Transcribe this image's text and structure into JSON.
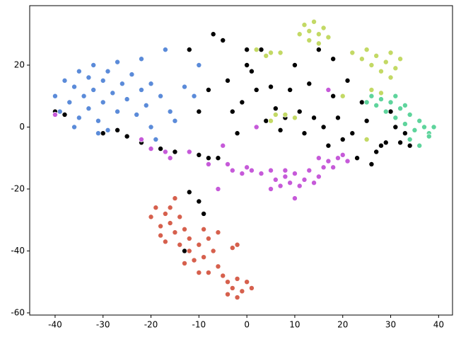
{
  "chart_data": {
    "type": "scatter",
    "xlim": [
      -45.3,
      42.9
    ],
    "ylim": [
      -60.7,
      39.2
    ],
    "xticks": [
      -40,
      -30,
      -20,
      -10,
      0,
      10,
      20,
      30,
      40
    ],
    "yticks": [
      -60,
      -40,
      -20,
      0,
      20
    ],
    "series": [
      {
        "color": "#5b8bd9",
        "x": [
          -40,
          -39,
          -38,
          -37,
          -36,
          -35,
          -35,
          -34,
          -33,
          -33,
          -32,
          -32,
          -31,
          -30,
          -30,
          -29,
          -29,
          -28,
          -27,
          -27,
          -26,
          -25,
          -25,
          -24,
          -23,
          -22,
          -22,
          -21,
          -20,
          -20,
          -19,
          -18,
          -17,
          -16,
          -15,
          -13,
          -10,
          -11,
          -36,
          -31
        ],
        "values": [
          10,
          5,
          15,
          8,
          13,
          18,
          3,
          10,
          16,
          6,
          20,
          12,
          2,
          15,
          8,
          18,
          -1,
          11,
          5,
          21,
          14,
          9,
          -3,
          17,
          4,
          12,
          22,
          7,
          0,
          14,
          -4,
          10,
          25,
          5,
          2,
          13,
          20,
          10,
          0,
          -2
        ]
      },
      {
        "color": "#000000",
        "x": [
          -40,
          -38,
          -30,
          -27,
          -25,
          -22,
          -18,
          -15,
          -12,
          -10,
          -8,
          -6,
          -10,
          -8,
          -12,
          -7,
          -5,
          -4,
          -3,
          -2,
          -1,
          0,
          0,
          1,
          2,
          3,
          4,
          5,
          6,
          7,
          8,
          9,
          10,
          11,
          12,
          13,
          14,
          15,
          16,
          17,
          18,
          19,
          20,
          21,
          22,
          23,
          24,
          25,
          26,
          27,
          28,
          29,
          30,
          31,
          32,
          33,
          34,
          -12,
          -10,
          -9,
          -13,
          18,
          24
        ],
        "values": [
          5,
          4,
          -2,
          -1,
          -3,
          -5,
          -7,
          -8,
          -8,
          -9,
          -10,
          -10,
          5,
          12,
          25,
          30,
          28,
          15,
          5,
          -2,
          8,
          20,
          25,
          18,
          12,
          25,
          2,
          13,
          6,
          -1,
          3,
          12,
          20,
          5,
          -2,
          14,
          3,
          25,
          0,
          -6,
          10,
          3,
          -4,
          15,
          -2,
          -10,
          8,
          2,
          -12,
          -8,
          -6,
          -5,
          5,
          0,
          -5,
          -2,
          -6,
          -21,
          -24,
          -28,
          -40,
          22,
          22
        ]
      },
      {
        "color": "#c3d965",
        "x": [
          12,
          13,
          14,
          15,
          16,
          13,
          11,
          15,
          17,
          2,
          4,
          5,
          7,
          22,
          24,
          25,
          26,
          27,
          28,
          29,
          30,
          31,
          32,
          30,
          6,
          8,
          10,
          5,
          26,
          28,
          25,
          20
        ],
        "values": [
          33,
          31,
          34,
          30,
          32,
          28,
          30,
          27,
          29,
          25,
          23,
          24,
          24,
          24,
          22,
          25,
          20,
          23,
          18,
          21,
          24,
          19,
          22,
          16,
          4,
          4,
          3,
          2,
          12,
          11,
          -4,
          10
        ]
      },
      {
        "color": "#5ed49c",
        "x": [
          25,
          26,
          27,
          28,
          29,
          30,
          31,
          32,
          33,
          34,
          35,
          36,
          37,
          38,
          34,
          36,
          33,
          31,
          38,
          39
        ],
        "values": [
          8,
          10,
          7,
          9,
          5,
          8,
          3,
          6,
          1,
          4,
          -1,
          2,
          0,
          -2,
          -4,
          -6,
          7,
          10,
          -3,
          0
        ]
      },
      {
        "color": "#c65ad9",
        "x": [
          -40,
          -22,
          -20,
          -17,
          -16,
          -12,
          -8,
          -5,
          -4,
          -3,
          -1,
          0,
          1,
          3,
          5,
          6,
          7,
          8,
          9,
          10,
          11,
          12,
          13,
          14,
          15,
          16,
          17,
          18,
          19,
          20,
          21,
          10,
          5,
          -6,
          2,
          17,
          15,
          8
        ],
        "values": [
          4,
          -4,
          -7,
          -8,
          -10,
          -8,
          -12,
          -6,
          -12,
          -14,
          -15,
          -13,
          -14,
          -15,
          -14,
          -17,
          -19,
          -16,
          -18,
          -15,
          -19,
          -17,
          -14,
          -18,
          -16,
          -13,
          -11,
          -13,
          -10,
          -9,
          -11,
          -23,
          -20,
          -20,
          0,
          12,
          -10,
          -14
        ]
      },
      {
        "color": "#d6604d",
        "x": [
          -19,
          -20,
          -18,
          -17,
          -16,
          -15,
          -16,
          -18,
          -14,
          -13,
          -12,
          -14,
          -12,
          -11,
          -13,
          -10,
          -9,
          -8,
          -7,
          -6,
          -8,
          -5,
          -4,
          -3,
          -2,
          -1,
          0,
          1,
          -4,
          -2,
          -10,
          -6,
          -3,
          -9,
          -17,
          -2,
          -15
        ],
        "values": [
          -26,
          -29,
          -32,
          -28,
          -31,
          -34,
          -26,
          -35,
          -29,
          -33,
          -36,
          -38,
          -40,
          -43,
          -44,
          -38,
          -42,
          -36,
          -40,
          -45,
          -47,
          -48,
          -50,
          -52,
          -49,
          -53,
          -50,
          -52,
          -54,
          -55,
          -47,
          -34,
          -39,
          -33,
          -37,
          -38,
          -23
        ]
      }
    ]
  }
}
